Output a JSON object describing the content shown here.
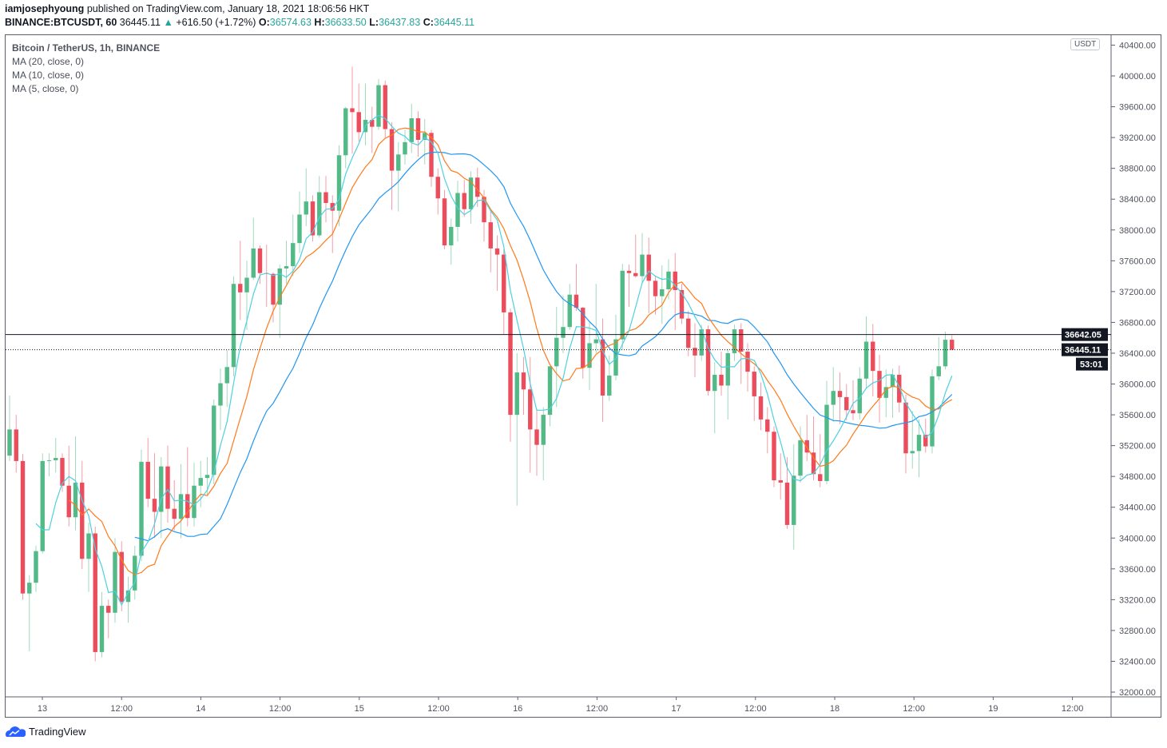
{
  "header": {
    "author": "iamjosephyoung",
    "published_text": "published on TradingView.com, January 18, 2021 18:06:56 HKT",
    "symbol": "BINANCE:BTCUSDT, 60",
    "last": "36445.11",
    "change": "+616.50 (+1.72%)",
    "o_label": "O:",
    "o": "36574.63",
    "h_label": "H:",
    "h": "36633.50",
    "l_label": "L:",
    "l": "36437.83",
    "c_label": "C:",
    "c": "36445.11",
    "up_icon": "triangle-up-icon"
  },
  "legend": {
    "title": "Bitcoin / TetherUS, 1h, BINANCE",
    "ma20": "MA (20, close, 0)",
    "ma10": "MA (10, close, 0)",
    "ma5": "MA (5, close, 0)"
  },
  "currency_badge": "USDT",
  "footer": {
    "logo": "TradingView"
  },
  "colors": {
    "up": "#53b987",
    "down": "#eb4d5c",
    "ma20": "#2196f3",
    "ma10": "#ff7a1a",
    "ma5": "#4dd0e1"
  },
  "chart_data": {
    "type": "candlestick",
    "timeframe": "1h",
    "start_time": "2021-01-12 19:00",
    "ylim": [
      32000,
      40400
    ],
    "y_ticks": [
      "32000.00",
      "32400.00",
      "32800.00",
      "33200.00",
      "33600.00",
      "34000.00",
      "34400.00",
      "34800.00",
      "35200.00",
      "35600.00",
      "36000.00",
      "36400.00",
      "36800.00",
      "37200.00",
      "37600.00",
      "38000.00",
      "38400.00",
      "38800.00",
      "39200.00",
      "39600.00",
      "40000.00",
      "40400.00"
    ],
    "x_ticks": [
      "13",
      "12:00",
      "14",
      "12:00",
      "15",
      "12:00",
      "16",
      "12:00",
      "17",
      "12:00",
      "18",
      "12:00",
      "19",
      "12:00"
    ],
    "grid": false,
    "moving_averages": [
      {
        "name": "MA (20, close, 0)",
        "period": 20
      },
      {
        "name": "MA (10, close, 0)",
        "period": 10
      },
      {
        "name": "MA (5, close, 0)",
        "period": 5
      }
    ],
    "price_lines": [
      {
        "value": "36642.05",
        "style": "solid"
      },
      {
        "value": "36445.11",
        "style": "dotted",
        "countdown": "53:01"
      }
    ],
    "candles_ohlc": [
      [
        35070,
        35850,
        35000,
        35410
      ],
      [
        35410,
        35600,
        34850,
        35000
      ],
      [
        35000,
        35090,
        33200,
        33280
      ],
      [
        33280,
        33520,
        32530,
        33420
      ],
      [
        33420,
        33900,
        33300,
        33830
      ],
      [
        33830,
        35100,
        33800,
        35000
      ],
      [
        35000,
        35100,
        34800,
        35010
      ],
      [
        35010,
        35300,
        34850,
        35040
      ],
      [
        35040,
        35100,
        34600,
        34680
      ],
      [
        34680,
        35200,
        34150,
        34270
      ],
      [
        34270,
        35320,
        34100,
        34720
      ],
      [
        34720,
        35000,
        33600,
        33730
      ],
      [
        33730,
        34200,
        33300,
        34060
      ],
      [
        34060,
        34150,
        32400,
        32520
      ],
      [
        32520,
        33300,
        32450,
        33120
      ],
      [
        33120,
        33200,
        32700,
        33030
      ],
      [
        33030,
        34000,
        32900,
        33820
      ],
      [
        33820,
        33960,
        33050,
        33170
      ],
      [
        33170,
        33500,
        32900,
        33320
      ],
      [
        33320,
        33900,
        33200,
        33770
      ],
      [
        33770,
        35150,
        33700,
        34990
      ],
      [
        34990,
        35300,
        34400,
        34510
      ],
      [
        34510,
        35100,
        34000,
        34340
      ],
      [
        34340,
        35050,
        34000,
        34930
      ],
      [
        34930,
        35200,
        34200,
        34380
      ],
      [
        34380,
        34750,
        34100,
        34250
      ],
      [
        34250,
        34960,
        34000,
        34570
      ],
      [
        34570,
        35180,
        34150,
        34260
      ],
      [
        34260,
        34980,
        34150,
        34680
      ],
      [
        34680,
        35000,
        34400,
        34780
      ],
      [
        34780,
        35050,
        34560,
        34820
      ],
      [
        34820,
        35800,
        34700,
        35720
      ],
      [
        35720,
        36200,
        35400,
        36010
      ],
      [
        36010,
        36440,
        35700,
        36220
      ],
      [
        36220,
        37400,
        36100,
        37300
      ],
      [
        37300,
        37860,
        36830,
        37190
      ],
      [
        37190,
        37600,
        36700,
        37380
      ],
      [
        37380,
        38160,
        37350,
        37760
      ],
      [
        37760,
        37800,
        37300,
        37440
      ],
      [
        37440,
        37810,
        37000,
        37430
      ],
      [
        37430,
        37450,
        36800,
        37030
      ],
      [
        37030,
        37550,
        36600,
        37500
      ],
      [
        37500,
        37860,
        37300,
        37530
      ],
      [
        37530,
        38200,
        37400,
        37830
      ],
      [
        37830,
        38500,
        37700,
        38200
      ],
      [
        38200,
        38800,
        38050,
        38370
      ],
      [
        38370,
        38450,
        37850,
        37930
      ],
      [
        37930,
        38700,
        37900,
        38490
      ],
      [
        38490,
        38700,
        38100,
        38350
      ],
      [
        38350,
        38450,
        37700,
        38250
      ],
      [
        38250,
        39100,
        38050,
        38970
      ],
      [
        38970,
        39600,
        38800,
        39580
      ],
      [
        39580,
        40120,
        38990,
        39530
      ],
      [
        39530,
        39900,
        39150,
        39270
      ],
      [
        39270,
        39900,
        39100,
        39430
      ],
      [
        39430,
        39600,
        39000,
        39340
      ],
      [
        39340,
        39960,
        39300,
        39880
      ],
      [
        39880,
        39940,
        39200,
        39310
      ],
      [
        39310,
        39400,
        38260,
        38770
      ],
      [
        38770,
        39140,
        38240,
        38980
      ],
      [
        38980,
        39300,
        38850,
        39140
      ],
      [
        39140,
        39640,
        39000,
        39450
      ],
      [
        39450,
        39540,
        38950,
        39170
      ],
      [
        39170,
        39440,
        38850,
        39260
      ],
      [
        39260,
        39300,
        38560,
        38690
      ],
      [
        38690,
        38800,
        38200,
        38410
      ],
      [
        38410,
        38520,
        37750,
        37800
      ],
      [
        37800,
        38150,
        37550,
        38040
      ],
      [
        38040,
        38640,
        37850,
        38480
      ],
      [
        38480,
        38650,
        38170,
        38270
      ],
      [
        38270,
        38760,
        38080,
        38680
      ],
      [
        38680,
        38810,
        38300,
        38430
      ],
      [
        38430,
        38520,
        37850,
        38100
      ],
      [
        38100,
        38250,
        37450,
        37760
      ],
      [
        37760,
        37930,
        37210,
        37680
      ],
      [
        37680,
        37750,
        36640,
        36930
      ],
      [
        36930,
        36980,
        35250,
        35600
      ],
      [
        35600,
        36400,
        34420,
        36150
      ],
      [
        36150,
        36350,
        35600,
        35930
      ],
      [
        35930,
        36350,
        34850,
        35410
      ],
      [
        35410,
        35680,
        34810,
        35210
      ],
      [
        35210,
        35700,
        34750,
        35600
      ],
      [
        35600,
        36230,
        35450,
        36230
      ],
      [
        36230,
        37000,
        35700,
        36600
      ],
      [
        36600,
        37150,
        36400,
        36740
      ],
      [
        36740,
        37300,
        36700,
        37160
      ],
      [
        37160,
        37560,
        36950,
        36990
      ],
      [
        36990,
        37000,
        36070,
        36210
      ],
      [
        36210,
        36800,
        35920,
        36530
      ],
      [
        36530,
        37300,
        36400,
        36580
      ],
      [
        36580,
        36850,
        35510,
        35850
      ],
      [
        35850,
        36370,
        35780,
        36110
      ],
      [
        36110,
        36900,
        36050,
        36580
      ],
      [
        36580,
        37560,
        36450,
        37470
      ],
      [
        37470,
        37550,
        37000,
        37440
      ],
      [
        37440,
        37940,
        37380,
        37400
      ],
      [
        37400,
        37960,
        37300,
        37680
      ],
      [
        37680,
        37900,
        36920,
        37340
      ],
      [
        37340,
        37410,
        36900,
        37140
      ],
      [
        37140,
        37540,
        36780,
        37230
      ],
      [
        37230,
        37620,
        37100,
        37460
      ],
      [
        37460,
        37700,
        36700,
        37220
      ],
      [
        37220,
        37300,
        36780,
        36850
      ],
      [
        36850,
        36950,
        36360,
        36470
      ],
      [
        36470,
        36790,
        36090,
        36370
      ],
      [
        36370,
        36770,
        36300,
        36710
      ],
      [
        36710,
        36760,
        35850,
        35910
      ],
      [
        35910,
        36280,
        35360,
        36120
      ],
      [
        36120,
        36420,
        35850,
        35980
      ],
      [
        35980,
        36450,
        35540,
        36400
      ],
      [
        36400,
        36770,
        36300,
        36710
      ],
      [
        36710,
        36790,
        36000,
        36420
      ],
      [
        36420,
        36530,
        35900,
        36160
      ],
      [
        36160,
        36230,
        35520,
        35840
      ],
      [
        35840,
        36020,
        35400,
        35540
      ],
      [
        35540,
        35700,
        35100,
        35380
      ],
      [
        35380,
        35450,
        34660,
        34750
      ],
      [
        34750,
        35100,
        34500,
        34720
      ],
      [
        34720,
        35050,
        34120,
        34170
      ],
      [
        34170,
        35220,
        33850,
        34810
      ],
      [
        34810,
        35450,
        34720,
        35270
      ],
      [
        35270,
        35600,
        35000,
        35110
      ],
      [
        35110,
        35580,
        34750,
        34830
      ],
      [
        34830,
        35350,
        34660,
        34740
      ],
      [
        34740,
        36040,
        34700,
        35730
      ],
      [
        35730,
        36220,
        35510,
        35910
      ],
      [
        35910,
        36150,
        35480,
        35830
      ],
      [
        35830,
        36000,
        35530,
        35660
      ],
      [
        35660,
        36050,
        35530,
        35620
      ],
      [
        35620,
        36220,
        35540,
        36070
      ],
      [
        36070,
        36880,
        35950,
        36550
      ],
      [
        36550,
        36780,
        35840,
        36170
      ],
      [
        36170,
        36380,
        35500,
        35820
      ],
      [
        35820,
        36190,
        35570,
        35960
      ],
      [
        35960,
        36200,
        35560,
        36120
      ],
      [
        36120,
        36240,
        35630,
        35760
      ],
      [
        35760,
        35860,
        34840,
        35100
      ],
      [
        35100,
        35650,
        34900,
        35130
      ],
      [
        35130,
        35540,
        34790,
        35340
      ],
      [
        35340,
        35550,
        35110,
        35190
      ],
      [
        35190,
        36190,
        35100,
        36100
      ],
      [
        36100,
        36610,
        36050,
        36230
      ],
      [
        36230,
        36680,
        36190,
        36574.63
      ],
      [
        36574.63,
        36633.5,
        36437.83,
        36445.11
      ]
    ]
  }
}
